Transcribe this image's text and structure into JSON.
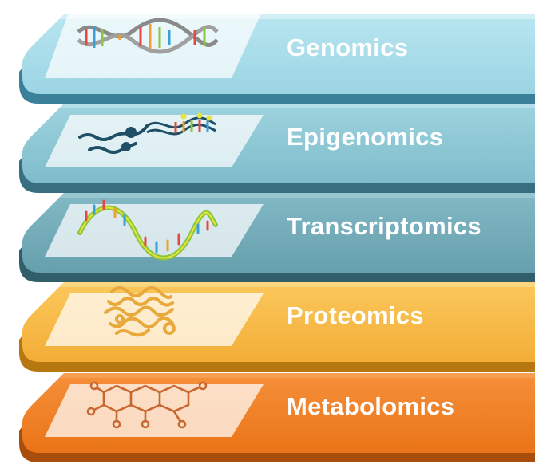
{
  "layers": [
    {
      "label": "Genomics",
      "icon": "dna-double-helix-icon",
      "colors": {
        "top": "#a4dbe8",
        "edge": "#5aaac2",
        "shadow": "#3a8099"
      }
    },
    {
      "label": "Epigenomics",
      "icon": "methylated-dna-icon",
      "colors": {
        "top": "#8ac6d3",
        "edge": "#4f97ab",
        "shadow": "#376f80"
      }
    },
    {
      "label": "Transcriptomics",
      "icon": "rna-strand-icon",
      "colors": {
        "top": "#6fa9b6",
        "edge": "#47828f",
        "shadow": "#305e69"
      }
    },
    {
      "label": "Proteomics",
      "icon": "folded-protein-icon",
      "colors": {
        "top": "#f6b845",
        "edge": "#e59a1c",
        "shadow": "#b67610"
      }
    },
    {
      "label": "Metabolomics",
      "icon": "metabolite-molecule-icon",
      "colors": {
        "top": "#f07f24",
        "edge": "#d66614",
        "shadow": "#a84d0c"
      }
    }
  ]
}
